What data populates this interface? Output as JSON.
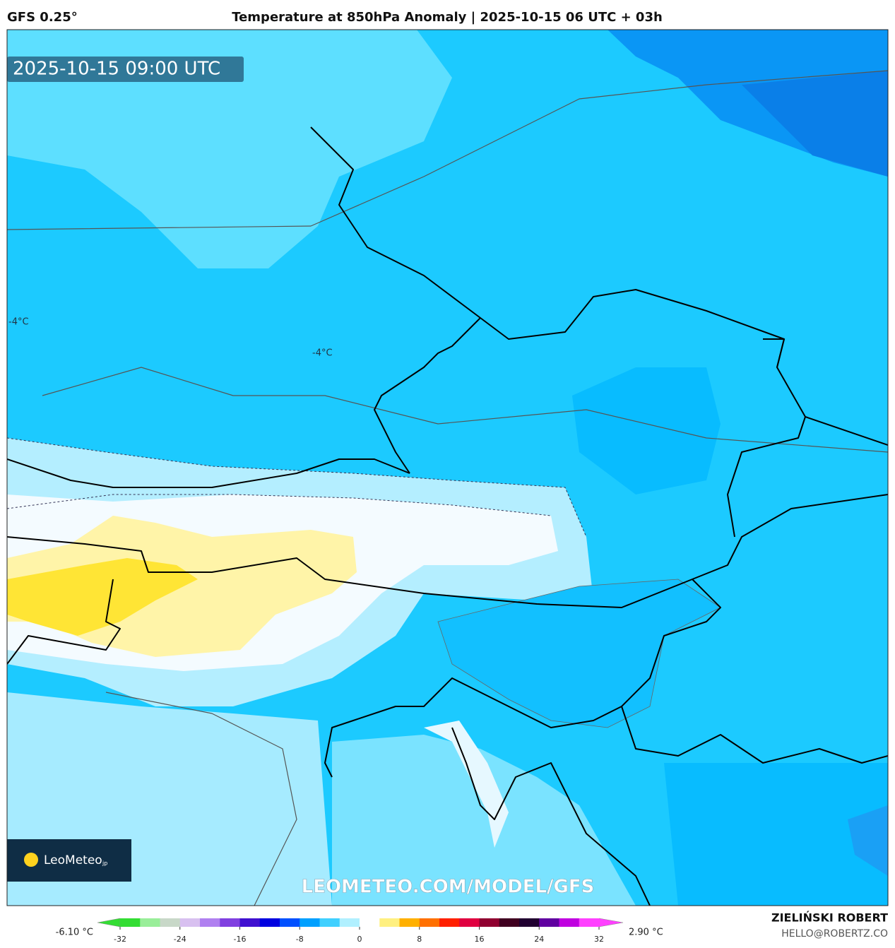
{
  "header": {
    "model": "GFS 0.25°",
    "title": "Temperature at 850hPa Anomaly | 2025-10-15 06 UTC + 03h"
  },
  "map": {
    "valid_time": "2025-10-15 09:00 UTC",
    "contour_labels": [
      "-4°C",
      "-4°C"
    ],
    "logo": "LeoMeteo",
    "logo_suffix": "jp",
    "watermark": "LEOMETEO.COM/MODEL/GFS"
  },
  "colorbar": {
    "min_label": "-6.10 °C",
    "max_label": "2.90 °C",
    "range": [
      -32,
      32
    ],
    "ticks": [
      -32,
      -24,
      -16,
      -8,
      0,
      8,
      16,
      24,
      32
    ],
    "colors": [
      "#33dd33",
      "#99ee99",
      "#c8d8c8",
      "#d8c0f0",
      "#b080f0",
      "#8040e0",
      "#4010d0",
      "#0000e0",
      "#0050ff",
      "#00a0ff",
      "#40d0ff",
      "#b0f0ff",
      "#ffffff",
      "#fff080",
      "#ffb000",
      "#ff7000",
      "#ff2000",
      "#e00040",
      "#900030",
      "#400020",
      "#200030",
      "#6000a0",
      "#c000e0",
      "#ff40ff"
    ]
  },
  "footer": {
    "author": "ZIELIŃSKI ROBERT",
    "email": "HELLO@ROBERTZ.CO"
  }
}
